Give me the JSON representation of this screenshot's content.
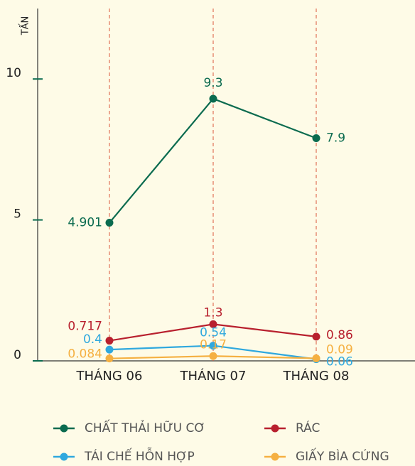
{
  "chart_data": {
    "type": "line",
    "y_label": "TẤN",
    "categories": [
      "THÁNG 06",
      "THÁNG 07",
      "THÁNG 08"
    ],
    "series": [
      {
        "name": "CHẤT THẢI HỮU CƠ",
        "color": "#0b6b4f",
        "values": [
          4.901,
          9.3,
          7.9
        ]
      },
      {
        "name": "RÁC",
        "color": "#b8202e",
        "values": [
          0.717,
          1.3,
          0.86
        ]
      },
      {
        "name": "TÁI CHẾ HỖN HỢP",
        "color": "#2fa8de",
        "values": [
          0.4,
          0.54,
          0.06
        ]
      },
      {
        "name": "GIẤY BÌA CỨNG",
        "color": "#f5b041",
        "values": [
          0.084,
          0.17,
          0.09
        ]
      }
    ],
    "ylim": [
      0,
      12.5
    ],
    "yticks": [
      0,
      5,
      10
    ]
  }
}
